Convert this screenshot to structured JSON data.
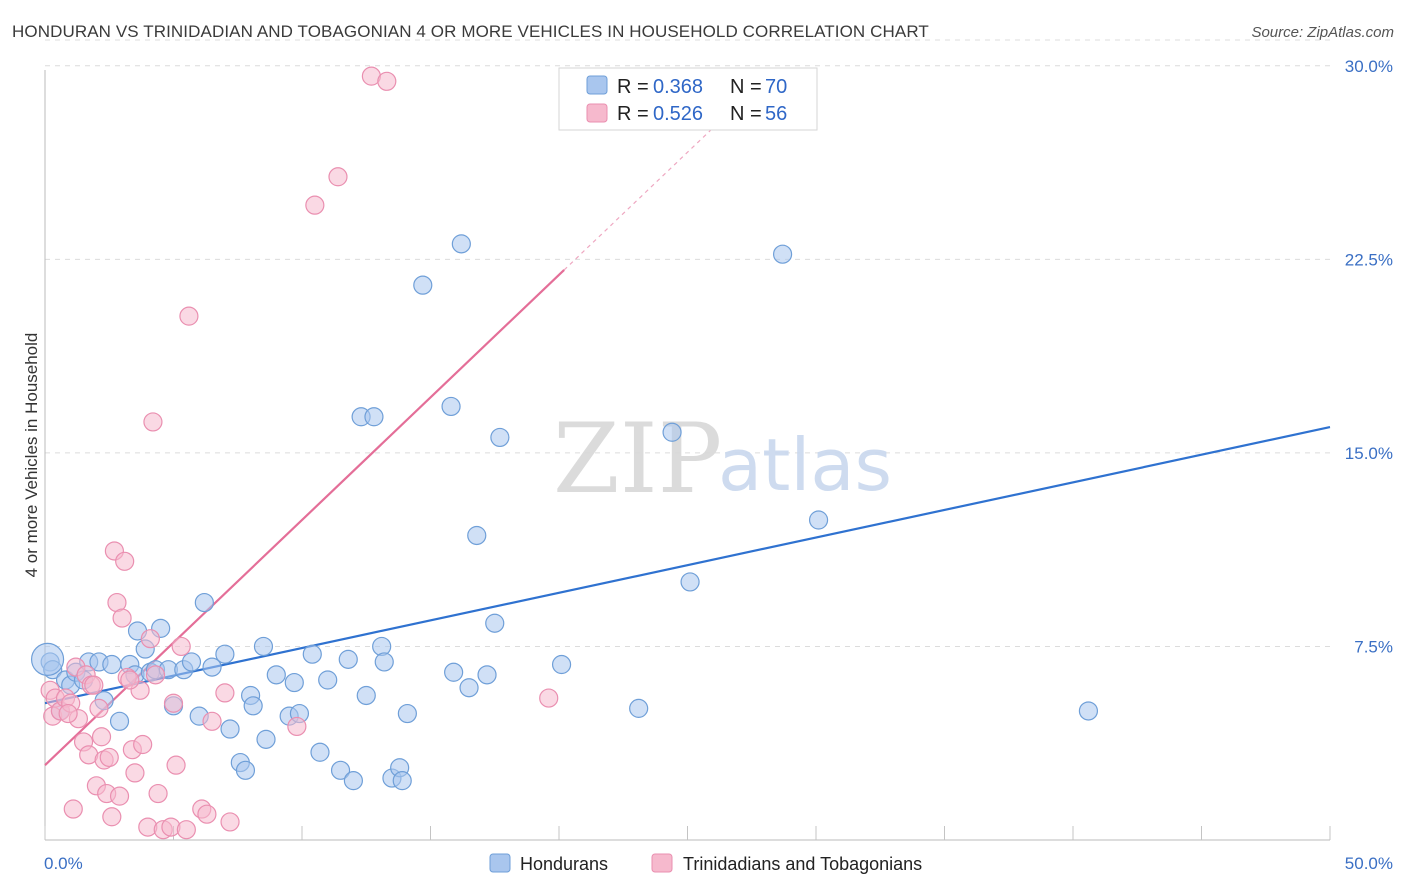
{
  "title": "HONDURAN VS TRINIDADIAN AND TOBAGONIAN 4 OR MORE VEHICLES IN HOUSEHOLD CORRELATION CHART",
  "source": "Source: ZipAtlas.com",
  "watermark": {
    "zip": "ZIP",
    "atlas": "atlas"
  },
  "legend": {
    "rows": [
      {
        "r_label": "R = ",
        "r_value": "0.368",
        "n_label": "N = ",
        "n_value": "70"
      },
      {
        "r_label": "R = ",
        "r_value": "0.526",
        "n_label": "N = ",
        "n_value": "56"
      }
    ]
  },
  "bottom_legend": [
    "Hondurans",
    "Trinidadians and Tobagonians"
  ],
  "colors": {
    "blue_fill": "#a9c6ee",
    "blue_stroke": "#6f9fd8",
    "blue_line": "#2f72d0",
    "pink_fill": "#f6b9cd",
    "pink_stroke": "#ea8fb0",
    "pink_line": "#e46e98",
    "grid": "#dcdcdc",
    "axis_text": "#3a6fc4"
  },
  "chart_data": {
    "type": "scatter",
    "title": "HONDURAN VS TRINIDADIAN AND TOBAGONIAN 4 OR MORE VEHICLES IN HOUSEHOLD CORRELATION CHART",
    "xlabel": "",
    "ylabel": "4 or more Vehicles in Household",
    "xlim": [
      0,
      50
    ],
    "ylim": [
      0,
      31
    ],
    "x_tick_labels": [
      "0.0%",
      "50.0%"
    ],
    "y_ticks": [
      7.5,
      15.0,
      22.5,
      30.0
    ],
    "y_tick_labels": [
      "7.5%",
      "15.0%",
      "22.5%",
      "30.0%"
    ],
    "series": [
      {
        "name": "Hondurans",
        "r": 0.368,
        "n": 70,
        "trend": {
          "x": [
            0,
            50
          ],
          "y": [
            5.3,
            16.0
          ],
          "solid_to": 50
        },
        "points": [
          [
            0.2,
            6.9
          ],
          [
            0.3,
            6.6
          ],
          [
            0.6,
            5.0
          ],
          [
            0.8,
            6.2
          ],
          [
            1.0,
            6.0
          ],
          [
            1.2,
            6.5
          ],
          [
            1.5,
            6.2
          ],
          [
            1.7,
            6.9
          ],
          [
            2.1,
            6.9
          ],
          [
            2.3,
            5.4
          ],
          [
            2.6,
            6.8
          ],
          [
            2.9,
            4.6
          ],
          [
            3.3,
            6.8
          ],
          [
            3.5,
            6.4
          ],
          [
            3.6,
            8.1
          ],
          [
            3.9,
            7.4
          ],
          [
            4.1,
            6.5
          ],
          [
            4.3,
            6.6
          ],
          [
            4.5,
            8.2
          ],
          [
            4.8,
            6.6
          ],
          [
            5.0,
            5.2
          ],
          [
            5.4,
            6.6
          ],
          [
            5.7,
            6.9
          ],
          [
            6.0,
            4.8
          ],
          [
            6.2,
            9.2
          ],
          [
            6.5,
            6.7
          ],
          [
            7.0,
            7.2
          ],
          [
            7.2,
            4.3
          ],
          [
            7.6,
            3.0
          ],
          [
            7.8,
            2.7
          ],
          [
            8.0,
            5.6
          ],
          [
            8.1,
            5.2
          ],
          [
            8.5,
            7.5
          ],
          [
            8.6,
            3.9
          ],
          [
            9.0,
            6.4
          ],
          [
            9.5,
            4.8
          ],
          [
            9.7,
            6.1
          ],
          [
            9.9,
            4.9
          ],
          [
            10.4,
            7.2
          ],
          [
            10.7,
            3.4
          ],
          [
            11.0,
            6.2
          ],
          [
            11.5,
            2.7
          ],
          [
            11.8,
            7.0
          ],
          [
            12.0,
            2.3
          ],
          [
            12.3,
            16.4
          ],
          [
            12.5,
            5.6
          ],
          [
            12.8,
            16.4
          ],
          [
            13.1,
            7.5
          ],
          [
            13.2,
            6.9
          ],
          [
            13.5,
            2.4
          ],
          [
            13.8,
            2.8
          ],
          [
            13.9,
            2.3
          ],
          [
            14.1,
            4.9
          ],
          [
            14.7,
            21.5
          ],
          [
            15.8,
            16.8
          ],
          [
            15.9,
            6.5
          ],
          [
            16.2,
            23.1
          ],
          [
            16.5,
            5.9
          ],
          [
            16.8,
            11.8
          ],
          [
            17.2,
            6.4
          ],
          [
            17.5,
            8.4
          ],
          [
            17.7,
            15.6
          ],
          [
            20.1,
            6.8
          ],
          [
            23.1,
            5.1
          ],
          [
            24.4,
            15.8
          ],
          [
            25.1,
            10.0
          ],
          [
            28.7,
            22.7
          ],
          [
            30.1,
            12.4
          ],
          [
            40.6,
            5.0
          ],
          [
            0.1,
            7.0
          ]
        ]
      },
      {
        "name": "Trinidadians and Tobagonians",
        "r": 0.526,
        "n": 56,
        "trend": {
          "x": [
            0,
            28
          ],
          "y": [
            2.9,
            29.5
          ],
          "solid_to": 20.2
        },
        "points": [
          [
            0.2,
            5.8
          ],
          [
            0.3,
            4.8
          ],
          [
            0.4,
            5.5
          ],
          [
            0.6,
            5.0
          ],
          [
            0.8,
            5.5
          ],
          [
            1.0,
            5.3
          ],
          [
            1.1,
            1.2
          ],
          [
            1.2,
            6.7
          ],
          [
            1.3,
            4.7
          ],
          [
            1.5,
            3.8
          ],
          [
            1.6,
            6.4
          ],
          [
            1.7,
            3.3
          ],
          [
            1.8,
            6.0
          ],
          [
            2.0,
            2.1
          ],
          [
            2.2,
            4.0
          ],
          [
            2.3,
            3.1
          ],
          [
            2.4,
            1.8
          ],
          [
            2.5,
            3.2
          ],
          [
            2.6,
            0.9
          ],
          [
            2.7,
            11.2
          ],
          [
            2.8,
            9.2
          ],
          [
            2.9,
            1.7
          ],
          [
            3.0,
            8.6
          ],
          [
            3.1,
            10.8
          ],
          [
            3.2,
            6.3
          ],
          [
            3.4,
            3.5
          ],
          [
            3.5,
            2.6
          ],
          [
            3.7,
            5.8
          ],
          [
            3.8,
            3.7
          ],
          [
            4.0,
            0.5
          ],
          [
            4.1,
            7.8
          ],
          [
            4.2,
            16.2
          ],
          [
            4.3,
            6.4
          ],
          [
            4.4,
            1.8
          ],
          [
            4.6,
            0.4
          ],
          [
            4.9,
            0.5
          ],
          [
            5.0,
            5.3
          ],
          [
            5.1,
            2.9
          ],
          [
            5.3,
            7.5
          ],
          [
            5.5,
            0.4
          ],
          [
            5.6,
            20.3
          ],
          [
            6.1,
            1.2
          ],
          [
            6.3,
            1.0
          ],
          [
            6.5,
            4.6
          ],
          [
            7.0,
            5.7
          ],
          [
            7.2,
            0.7
          ],
          [
            9.8,
            4.4
          ],
          [
            10.5,
            24.6
          ],
          [
            11.4,
            25.7
          ],
          [
            12.7,
            29.6
          ],
          [
            13.3,
            29.4
          ],
          [
            19.6,
            5.5
          ],
          [
            2.1,
            5.1
          ],
          [
            1.9,
            6.0
          ],
          [
            0.9,
            4.9
          ],
          [
            3.3,
            6.2
          ]
        ]
      }
    ]
  }
}
